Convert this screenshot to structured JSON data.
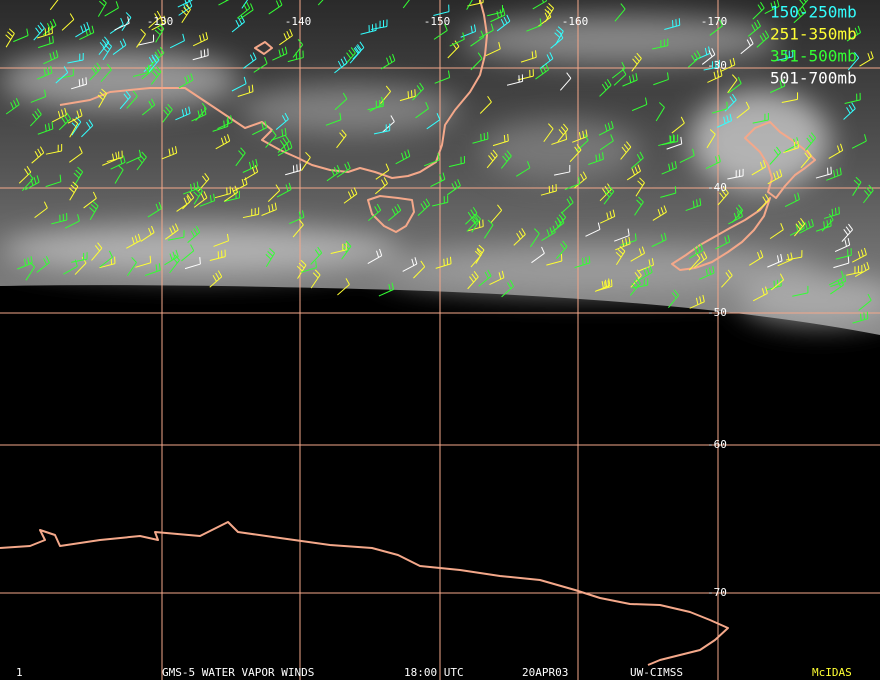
{
  "map": {
    "longitude_labels": [
      "-130",
      "-140",
      "-150",
      "-160",
      "-170"
    ],
    "latitude_labels": [
      "-30",
      "-40",
      "-50",
      "-60",
      "-70"
    ],
    "legend": [
      {
        "label": "150-250mb",
        "color": "#33ffff"
      },
      {
        "label": "251-350mb",
        "color": "#ffff33"
      },
      {
        "label": "351-500mb",
        "color": "#33ff33"
      },
      {
        "label": "501-700mb",
        "color": "#ffffff"
      }
    ],
    "footer": {
      "frame": "1",
      "title": "GMS-5 WATER VAPOR WINDS",
      "time": "18:00 UTC",
      "date": "20APR03",
      "source": "UW-CIMSS",
      "software": "McIDAS"
    }
  }
}
